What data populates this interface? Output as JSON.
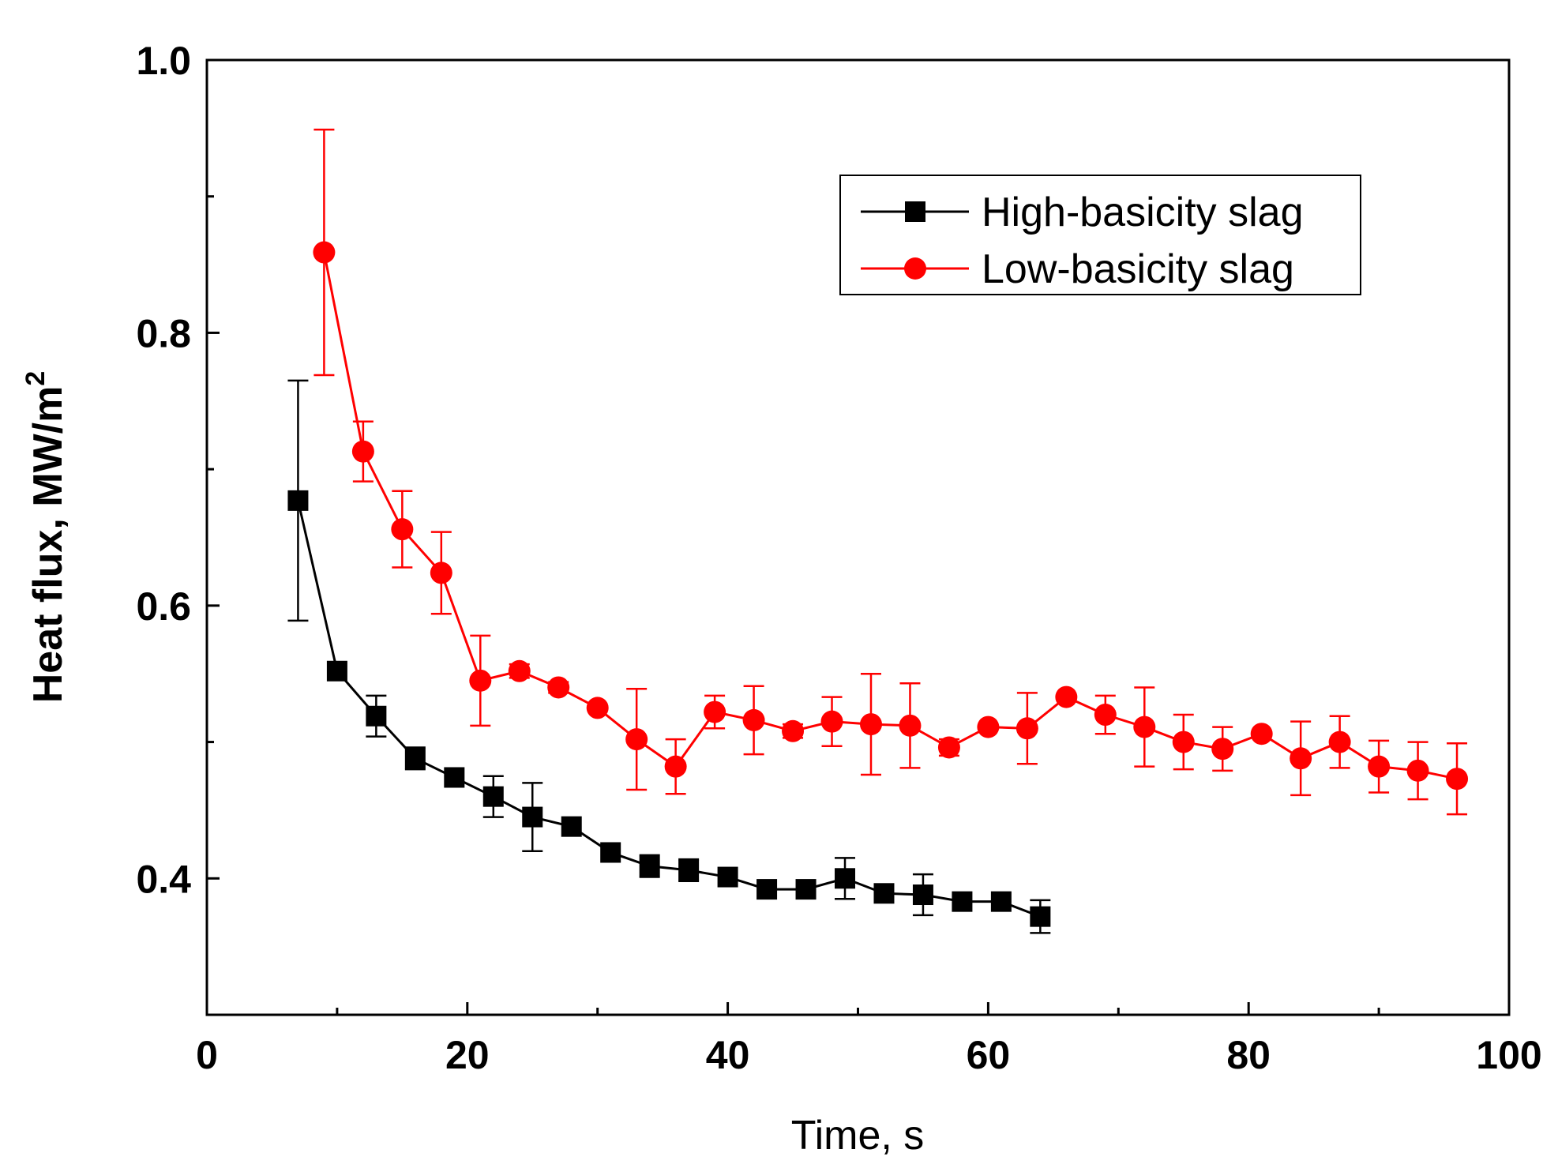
{
  "chart_data": {
    "type": "line",
    "xlabel": "Time, s",
    "ylabel": "Heat flux, MW/m",
    "ylabel_superscript": "2",
    "xlim": [
      0,
      100
    ],
    "ylim": [
      0.3,
      1.0
    ],
    "x_ticks": [
      0,
      20,
      40,
      60,
      80,
      100
    ],
    "x_tick_labels": [
      "0",
      "20",
      "40",
      "60",
      "80",
      "100"
    ],
    "y_ticks": [
      0.4,
      0.6,
      0.8,
      1.0
    ],
    "y_tick_labels": [
      "0.4",
      "0.6",
      "0.8",
      "1.0"
    ],
    "grid": false,
    "legend_position": "top-right",
    "series": [
      {
        "name": "High-basicity slag",
        "color": "#000000",
        "marker": "square",
        "points": [
          {
            "x": 7,
            "y": 0.677,
            "err": 0.088
          },
          {
            "x": 10,
            "y": 0.552,
            "err": 0.0
          },
          {
            "x": 13,
            "y": 0.519,
            "err": 0.015
          },
          {
            "x": 16,
            "y": 0.488,
            "err": 0.008
          },
          {
            "x": 19,
            "y": 0.474,
            "err": 0.0
          },
          {
            "x": 22,
            "y": 0.46,
            "err": 0.015
          },
          {
            "x": 25,
            "y": 0.445,
            "err": 0.025
          },
          {
            "x": 28,
            "y": 0.438,
            "err": 0.0
          },
          {
            "x": 31,
            "y": 0.419,
            "err": 0.0
          },
          {
            "x": 34,
            "y": 0.409,
            "err": 0.008
          },
          {
            "x": 37,
            "y": 0.406,
            "err": 0.008
          },
          {
            "x": 40,
            "y": 0.401,
            "err": 0.0
          },
          {
            "x": 43,
            "y": 0.392,
            "err": 0.0
          },
          {
            "x": 46,
            "y": 0.392,
            "err": 0.0
          },
          {
            "x": 49,
            "y": 0.4,
            "err": 0.015
          },
          {
            "x": 52,
            "y": 0.389,
            "err": 0.0
          },
          {
            "x": 55,
            "y": 0.388,
            "err": 0.015
          },
          {
            "x": 58,
            "y": 0.383,
            "err": 0.0
          },
          {
            "x": 61,
            "y": 0.383,
            "err": 0.0
          },
          {
            "x": 64,
            "y": 0.372,
            "err": 0.012
          }
        ]
      },
      {
        "name": "Low-basicity slag",
        "color": "#ff0000",
        "marker": "circle",
        "points": [
          {
            "x": 9,
            "y": 0.859,
            "err": 0.09
          },
          {
            "x": 12,
            "y": 0.713,
            "err": 0.022
          },
          {
            "x": 15,
            "y": 0.656,
            "err": 0.028
          },
          {
            "x": 18,
            "y": 0.624,
            "err": 0.03
          },
          {
            "x": 21,
            "y": 0.545,
            "err": 0.033
          },
          {
            "x": 24,
            "y": 0.552,
            "err": 0.005
          },
          {
            "x": 27,
            "y": 0.54,
            "err": 0.004
          },
          {
            "x": 30,
            "y": 0.525,
            "err": 0.0
          },
          {
            "x": 33,
            "y": 0.502,
            "err": 0.037
          },
          {
            "x": 36,
            "y": 0.482,
            "err": 0.02
          },
          {
            "x": 39,
            "y": 0.522,
            "err": 0.012
          },
          {
            "x": 42,
            "y": 0.516,
            "err": 0.025
          },
          {
            "x": 45,
            "y": 0.508,
            "err": 0.005
          },
          {
            "x": 48,
            "y": 0.515,
            "err": 0.018
          },
          {
            "x": 51,
            "y": 0.513,
            "err": 0.037
          },
          {
            "x": 54,
            "y": 0.512,
            "err": 0.031
          },
          {
            "x": 57,
            "y": 0.496,
            "err": 0.006
          },
          {
            "x": 60,
            "y": 0.511,
            "err": 0.0
          },
          {
            "x": 63,
            "y": 0.51,
            "err": 0.026
          },
          {
            "x": 66,
            "y": 0.533,
            "err": 0.0
          },
          {
            "x": 69,
            "y": 0.52,
            "err": 0.014
          },
          {
            "x": 72,
            "y": 0.511,
            "err": 0.029
          },
          {
            "x": 75,
            "y": 0.5,
            "err": 0.02
          },
          {
            "x": 78,
            "y": 0.495,
            "err": 0.016
          },
          {
            "x": 81,
            "y": 0.506,
            "err": 0.0
          },
          {
            "x": 84,
            "y": 0.488,
            "err": 0.027
          },
          {
            "x": 87,
            "y": 0.5,
            "err": 0.019
          },
          {
            "x": 90,
            "y": 0.482,
            "err": 0.019
          },
          {
            "x": 93,
            "y": 0.479,
            "err": 0.021
          },
          {
            "x": 96,
            "y": 0.473,
            "err": 0.026
          }
        ]
      }
    ]
  }
}
